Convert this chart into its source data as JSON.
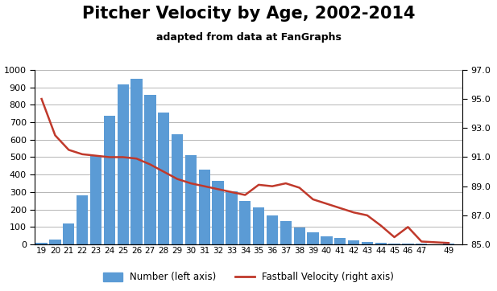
{
  "title": "Pitcher Velocity by Age, 2002-2014",
  "subtitle": "adapted from data at FanGraphs",
  "ages": [
    19,
    20,
    21,
    22,
    23,
    24,
    25,
    26,
    27,
    28,
    29,
    30,
    31,
    32,
    33,
    34,
    35,
    36,
    37,
    38,
    39,
    40,
    41,
    42,
    43,
    44,
    45,
    46,
    47,
    49
  ],
  "counts": [
    10,
    30,
    120,
    280,
    505,
    735,
    915,
    950,
    855,
    755,
    630,
    510,
    430,
    365,
    305,
    250,
    210,
    165,
    135,
    98,
    70,
    47,
    38,
    25,
    15,
    8,
    3,
    5,
    4,
    3
  ],
  "velocities": [
    95.0,
    92.5,
    91.5,
    91.2,
    91.1,
    91.0,
    91.0,
    90.9,
    90.5,
    90.0,
    89.5,
    89.2,
    89.0,
    88.8,
    88.6,
    88.4,
    89.1,
    89.0,
    89.2,
    88.9,
    88.1,
    87.8,
    87.5,
    87.2,
    87.0,
    86.3,
    85.5,
    86.2,
    85.2,
    85.1
  ],
  "bar_color": "#5b9bd5",
  "line_color": "#c0392b",
  "left_ylim": [
    0,
    1000
  ],
  "right_ylim": [
    85.0,
    97.0
  ],
  "left_yticks": [
    0,
    100,
    200,
    300,
    400,
    500,
    600,
    700,
    800,
    900,
    1000
  ],
  "right_yticks": [
    85.0,
    87.0,
    89.0,
    91.0,
    93.0,
    95.0,
    97.0
  ],
  "legend_bar_label": "Number (left axis)",
  "legend_line_label": "Fastball Velocity (right axis)",
  "title_fontsize": 15,
  "subtitle_fontsize": 9,
  "background_color": "#ffffff",
  "xlim_left": 18.5,
  "xlim_right": 50.0
}
